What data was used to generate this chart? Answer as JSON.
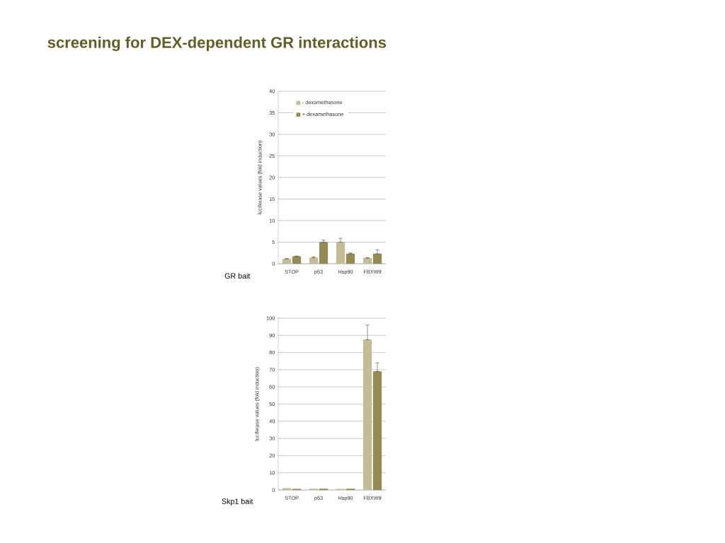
{
  "chart_data": [
    {
      "type": "bar",
      "title": "screening for DEX-dependent GR interactions",
      "ylabel": "luciferase values (fold induction)",
      "annotations": [
        "GR bait"
      ],
      "categories": [
        "STOP",
        "p53",
        "Hsp90",
        "FBXW9"
      ],
      "series": [
        {
          "name": "- dexamethasone",
          "color": "#c4bc96",
          "values": [
            1.1,
            1.4,
            5.0,
            1.3
          ],
          "errors": [
            [
              1.1,
              1.2
            ],
            [
              1.4,
              1.6
            ],
            [
              5.0,
              5.9
            ],
            [
              1.3,
              1.4
            ]
          ]
        },
        {
          "name": "+ dexamethasone",
          "color": "#948a54",
          "values": [
            1.7,
            5.0,
            2.3,
            2.3
          ],
          "errors": [
            [
              1.7,
              1.8
            ],
            [
              5.0,
              5.5
            ],
            [
              2.3,
              2.5
            ],
            [
              2.3,
              3.2
            ]
          ]
        }
      ],
      "ylim": [
        0,
        40
      ],
      "yticks": [
        0,
        5,
        10,
        15,
        20,
        25,
        30,
        35,
        40
      ],
      "grid": "y",
      "legend": "top left"
    },
    {
      "type": "bar",
      "ylabel": "luciferase values (fold induction)",
      "annotations": [
        "Skp1 bait"
      ],
      "categories": [
        "STOP",
        "p53",
        "Hsp90",
        "FBXW9"
      ],
      "series": [
        {
          "color": "#c4bc96",
          "values": [
            1.0,
            0.7,
            0.6,
            87.5
          ],
          "errors": [
            null,
            null,
            null,
            [
              87.5,
              96
            ]
          ]
        },
        {
          "color": "#948a54",
          "values": [
            0.6,
            0.7,
            0.7,
            69
          ],
          "errors": [
            null,
            null,
            null,
            [
              69,
              74
            ]
          ]
        }
      ],
      "ylim": [
        0,
        100
      ],
      "yticks": [
        0,
        10,
        20,
        30,
        40,
        50,
        60,
        70,
        80,
        90,
        100
      ],
      "grid": "y"
    }
  ]
}
